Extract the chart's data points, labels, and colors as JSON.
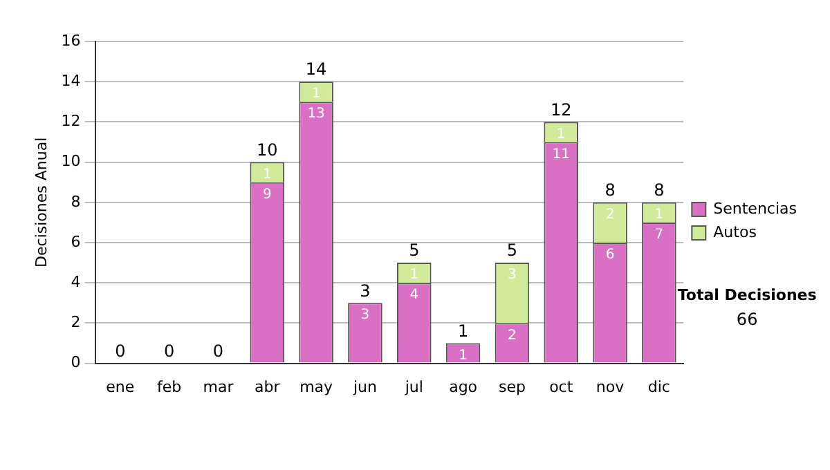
{
  "chart_data": {
    "type": "bar",
    "stacked": true,
    "ylabel": "Decisiones Anual",
    "categories": [
      "ene",
      "feb",
      "mar",
      "abr",
      "may",
      "jun",
      "jul",
      "ago",
      "sep",
      "oct",
      "nov",
      "dic"
    ],
    "series": [
      {
        "name": "Sentencias",
        "color": "#d970c4",
        "values": [
          0,
          0,
          0,
          9,
          13,
          3,
          4,
          1,
          2,
          11,
          6,
          7
        ],
        "value_labels": [
          null,
          null,
          null,
          "9",
          "13",
          "3",
          "4",
          "1",
          "2",
          "11",
          "6",
          "7"
        ]
      },
      {
        "name": "Autos",
        "color": "#d2eb9a",
        "values": [
          0,
          0,
          0,
          1,
          1,
          0,
          1,
          0,
          3,
          1,
          2,
          1
        ],
        "value_labels": [
          null,
          null,
          null,
          "1",
          "1",
          null,
          "1",
          null,
          "3",
          "1",
          "2",
          "1"
        ]
      }
    ],
    "totals": [
      "0",
      "0",
      "0",
      "10",
      "14",
      "3",
      "5",
      "1",
      "5",
      "12",
      "8",
      "8"
    ],
    "ylim": [
      0,
      16
    ],
    "yticks": [
      0,
      2,
      4,
      6,
      8,
      10,
      12,
      14,
      16
    ],
    "grid": "y",
    "legend": "right",
    "annotations": [
      "Total Decisiones",
      "66"
    ]
  }
}
